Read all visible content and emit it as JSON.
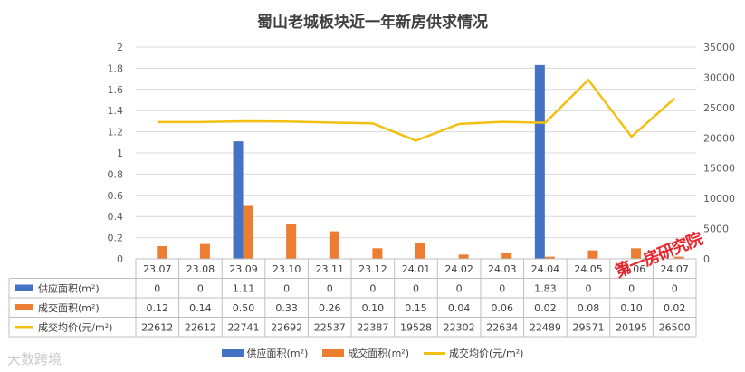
{
  "chart_data": {
    "type": "bar",
    "title": "蜀山老城板块近一年新房供求情况",
    "categories": [
      "23.07",
      "23.08",
      "23.09",
      "23.10",
      "23.11",
      "23.12",
      "24.01",
      "24.02",
      "24.03",
      "24.04",
      "24.05",
      "24.06",
      "24.07"
    ],
    "series": [
      {
        "name": "供应面积(m²)",
        "type": "bar",
        "axis": "left",
        "color": "#4472c4",
        "values": [
          0,
          0,
          1.11,
          0,
          0,
          0,
          0,
          0,
          0,
          1.83,
          0,
          0,
          0
        ],
        "labels": [
          "0",
          "0",
          "1.11",
          "0",
          "0",
          "0",
          "0",
          "0",
          "0",
          "1.83",
          "0",
          "0",
          "0"
        ]
      },
      {
        "name": "成交面积(m²)",
        "type": "bar",
        "axis": "left",
        "color": "#ed7d31",
        "values": [
          0.12,
          0.14,
          0.5,
          0.33,
          0.26,
          0.1,
          0.15,
          0.04,
          0.06,
          0.02,
          0.08,
          0.1,
          0.02
        ],
        "labels": [
          "0.12",
          "0.14",
          "0.50",
          "0.33",
          "0.26",
          "0.10",
          "0.15",
          "0.04",
          "0.06",
          "0.02",
          "0.08",
          "0.10",
          "0.02"
        ]
      },
      {
        "name": "成交均价(元/m²)",
        "type": "line",
        "axis": "right",
        "color": "#f2c010",
        "values": [
          22612,
          22612,
          22741,
          22692,
          22537,
          22387,
          19528,
          22302,
          22634,
          22489,
          29571,
          20195,
          26500
        ],
        "labels": [
          "22612",
          "22612",
          "22741",
          "22692",
          "22537",
          "22387",
          "19528",
          "22302",
          "22634",
          "22489",
          "29571",
          "20195",
          "26500"
        ]
      }
    ],
    "y_left": {
      "min": 0,
      "max": 2,
      "ticks": [
        "0",
        "0.2",
        "0.4",
        "0.6",
        "0.8",
        "1",
        "1.2",
        "1.4",
        "1.6",
        "1.8",
        "2"
      ]
    },
    "y_right": {
      "min": 0,
      "max": 35000,
      "ticks": [
        "0",
        "5000",
        "10000",
        "15000",
        "20000",
        "25000",
        "30000",
        "35000"
      ]
    },
    "grid": true,
    "legend_position": "bottom",
    "data_table": true
  },
  "watermarks": {
    "top": "第一房研究院",
    "bottom": "大数跨境"
  }
}
